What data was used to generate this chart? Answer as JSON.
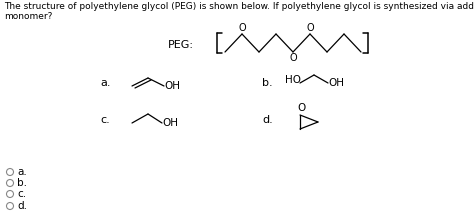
{
  "title_text": "The structure of polyethylene glycol (PEG) is shown below. If polyethylene glycol is synthesized via addition polymerization, what is the structure of the\nmonomer?",
  "bg_color": "#ffffff",
  "text_color": "#000000",
  "title_fontsize": 6.5,
  "radio_labels": [
    "a.",
    "b.",
    "c.",
    "d."
  ]
}
